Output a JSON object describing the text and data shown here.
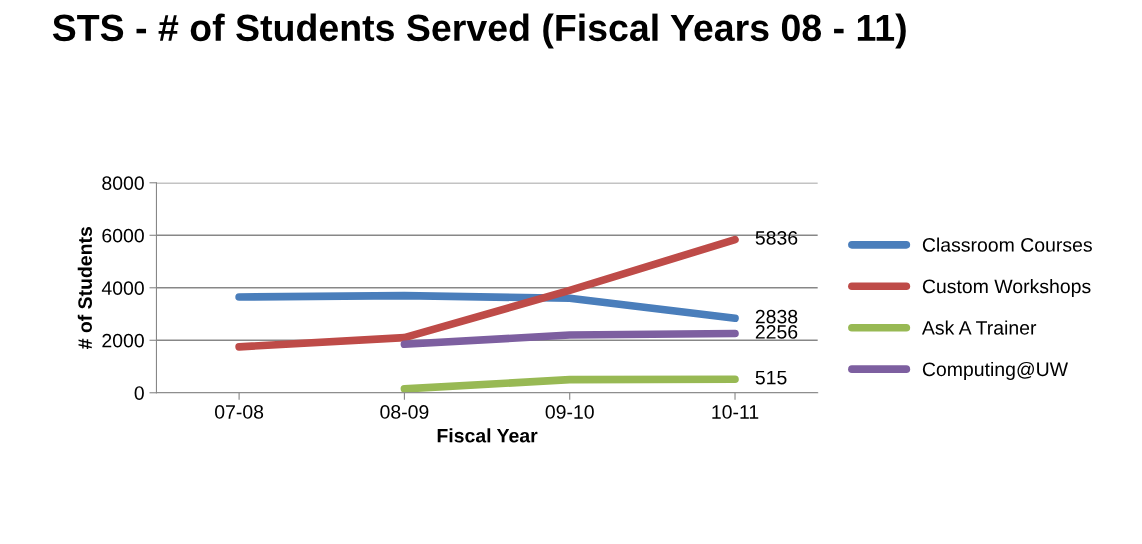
{
  "chart_data": {
    "type": "line",
    "title": "STS - # of Students Served (Fiscal Years 08 - 11)",
    "xlabel": "Fiscal Year",
    "ylabel": "# of Students",
    "categories": [
      "07-08",
      "08-09",
      "09-10",
      "10-11"
    ],
    "series": [
      {
        "name": "Classroom Courses",
        "color": "#4a7ebb",
        "values": [
          3650,
          3700,
          3600,
          2838
        ],
        "value_labels": [
          null,
          null,
          null,
          "2838"
        ]
      },
      {
        "name": "Custom Workshops",
        "color": "#be4b48",
        "values": [
          1750,
          2100,
          3900,
          5836
        ],
        "value_labels": [
          null,
          null,
          null,
          "5836"
        ]
      },
      {
        "name": "Ask A Trainer",
        "color": "#98b954",
        "values": [
          null,
          150,
          500,
          515
        ],
        "value_labels": [
          null,
          null,
          null,
          "515"
        ]
      },
      {
        "name": "Computing@UW",
        "color": "#7d5fa0",
        "values": [
          null,
          1850,
          2200,
          2256
        ],
        "value_labels": [
          null,
          null,
          null,
          "2256"
        ]
      }
    ],
    "ylim": [
      0,
      8000
    ],
    "yticks": [
      0,
      2000,
      4000,
      6000,
      8000
    ],
    "grid": "y",
    "legend": "right",
    "marker": "none",
    "line_style": "solid"
  }
}
